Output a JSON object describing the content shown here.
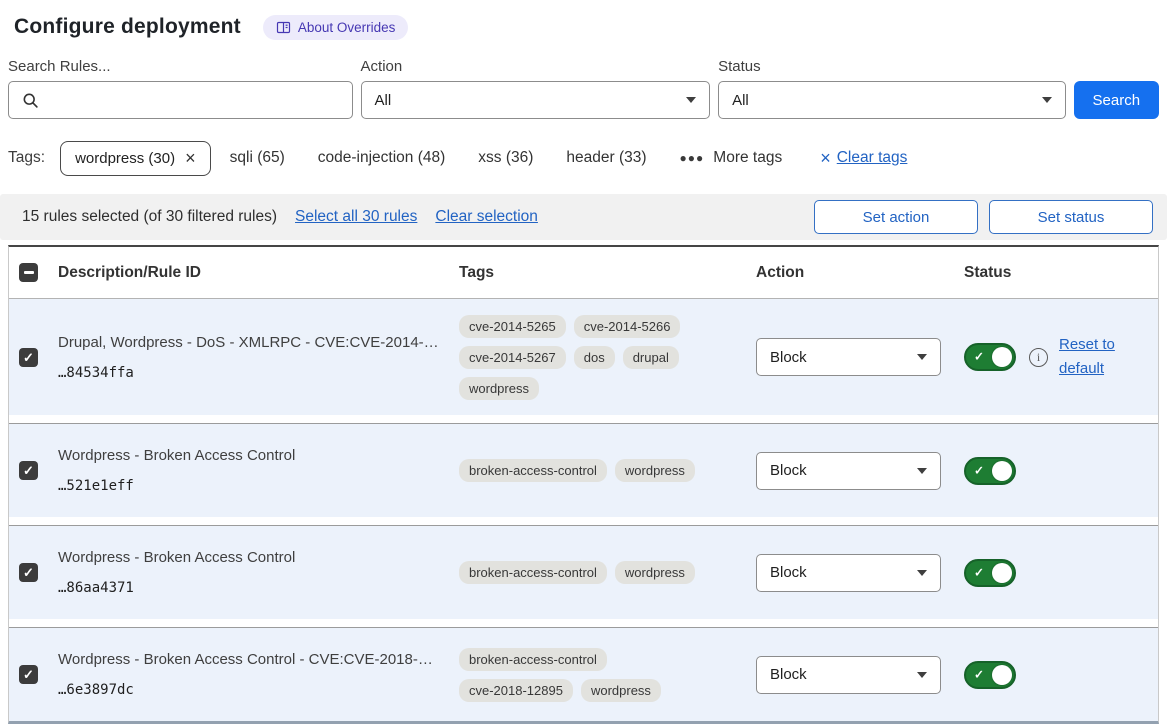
{
  "header": {
    "title": "Configure deployment",
    "about_badge_label": "About Overrides"
  },
  "filters": {
    "search_label": "Search Rules...",
    "search_value": "",
    "action_label": "Action",
    "action_value": "All",
    "status_label": "Status",
    "status_value": "All",
    "search_button_label": "Search"
  },
  "tags_bar": {
    "label": "Tags:",
    "selected_tag": "wordpress (30)",
    "other_tags": [
      "sqli (65)",
      "code-injection (48)",
      "xss (36)",
      "header (33)"
    ],
    "more_tags_label": "More tags",
    "clear_tags_label": "Clear tags"
  },
  "selection_bar": {
    "summary": "15 rules selected (of 30 filtered rules)",
    "select_all_label": "Select all 30 rules",
    "clear_selection_label": "Clear selection",
    "set_action_label": "Set action",
    "set_status_label": "Set status"
  },
  "table": {
    "columns": {
      "description": "Description/Rule ID",
      "tags": "Tags",
      "action": "Action",
      "status": "Status"
    },
    "rows": [
      {
        "description": "Drupal, Wordpress - DoS - XMLRPC - CVE:CVE-2014-…",
        "rule_id": "…84534ffa",
        "tags": [
          "cve-2014-5265",
          "cve-2014-5266",
          "cve-2014-5267",
          "dos",
          "drupal",
          "wordpress"
        ],
        "action": "Block",
        "enabled": true,
        "checked": true,
        "has_info": true,
        "reset_label": "Reset to default"
      },
      {
        "description": "Wordpress - Broken Access Control",
        "rule_id": "…521e1eff",
        "tags": [
          "broken-access-control",
          "wordpress"
        ],
        "action": "Block",
        "enabled": true,
        "checked": true,
        "has_info": false
      },
      {
        "description": "Wordpress - Broken Access Control",
        "rule_id": "…86aa4371",
        "tags": [
          "broken-access-control",
          "wordpress"
        ],
        "action": "Block",
        "enabled": true,
        "checked": true,
        "has_info": false
      },
      {
        "description": "Wordpress - Broken Access Control - CVE:CVE-2018-…",
        "rule_id": "…6e3897dc",
        "tags": [
          "broken-access-control",
          "cve-2018-12895",
          "wordpress"
        ],
        "action": "Block",
        "enabled": true,
        "checked": true,
        "has_info": false
      }
    ]
  },
  "colors": {
    "search_button_blue": "#1570ef",
    "link_blue": "#2263c3",
    "toggle_green": "#1e7d33",
    "row_background": "#ecf2fb",
    "badge_purple_bg": "#edebfb",
    "badge_purple_text": "#4638b3",
    "tag_pill_bg": "#e2e2de"
  }
}
